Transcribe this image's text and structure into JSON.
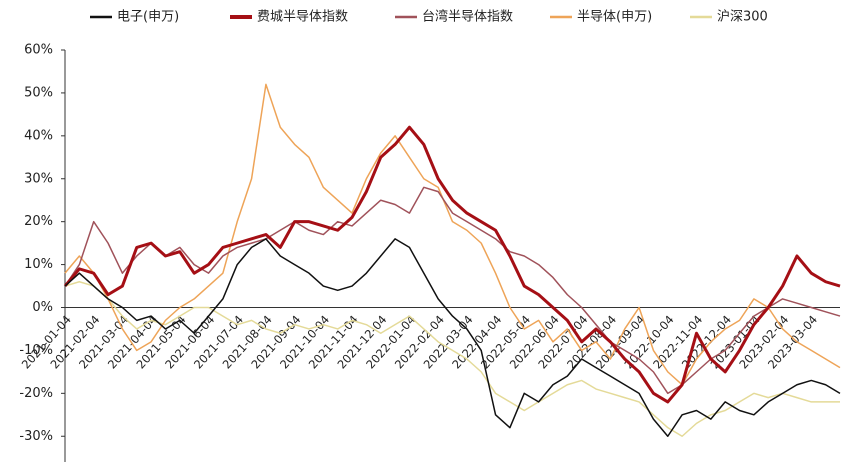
{
  "chart_data": {
    "type": "line",
    "x": [
      "2021-01-04",
      null,
      "2021-02-04",
      null,
      "2021-03-04",
      null,
      "2021-04-04",
      null,
      "2021-05-04",
      null,
      "2021-06-04",
      null,
      "2021-07-04",
      null,
      "2021-08-04",
      null,
      "2021-09-04",
      null,
      "2021-10-04",
      null,
      "2021-11-04",
      null,
      "2021-12-04",
      null,
      "2022-01-04",
      null,
      "2022-02-04",
      null,
      "2022-03-04",
      null,
      "2022-04-04",
      null,
      "2022-05-04",
      null,
      "2022-06-04",
      null,
      "2022-07-04",
      null,
      "2022-08-04",
      null,
      "2022-09-04",
      null,
      "2022-10-04",
      null,
      "2022-11-04",
      null,
      "2022-12-04",
      null,
      "2023-01-04",
      null,
      "2023-02-04",
      null,
      "2023-03-04",
      null,
      null
    ],
    "series": [
      {
        "name": "电子(申万)",
        "color": "#111111",
        "width": 1.5,
        "values": [
          5,
          8,
          5,
          2,
          0,
          -3,
          -2,
          -5,
          -3,
          -6,
          -2,
          2,
          10,
          14,
          16,
          12,
          10,
          8,
          5,
          4,
          5,
          8,
          12,
          16,
          14,
          8,
          2,
          -2,
          -5,
          -10,
          -25,
          -28,
          -20,
          -22,
          -18,
          -16,
          -12,
          -14,
          -16,
          -18,
          -20,
          -26,
          -30,
          -25,
          -24,
          -26,
          -22,
          -24,
          -25,
          -22,
          -20,
          -18,
          -17,
          -18,
          -20
        ]
      },
      {
        "name": "费城半导体指数",
        "color": "#a50f15",
        "width": 3,
        "values": [
          5,
          9,
          8,
          3,
          5,
          14,
          15,
          12,
          13,
          8,
          10,
          14,
          15,
          16,
          17,
          14,
          20,
          20,
          19,
          18,
          21,
          27,
          35,
          38,
          42,
          38,
          30,
          25,
          22,
          20,
          18,
          12,
          5,
          3,
          0,
          -3,
          -8,
          -5,
          -8,
          -12,
          -15,
          -20,
          -22,
          -18,
          -6,
          -12,
          -15,
          -10,
          -4,
          0,
          5,
          12,
          8,
          6,
          5
        ]
      },
      {
        "name": "台湾半导体指数",
        "color": "#a0525a",
        "width": 1.5,
        "values": [
          5,
          10,
          20,
          15,
          8,
          12,
          15,
          12,
          14,
          10,
          8,
          12,
          14,
          15,
          16,
          18,
          20,
          18,
          17,
          20,
          19,
          22,
          25,
          24,
          22,
          28,
          27,
          22,
          20,
          18,
          16,
          13,
          12,
          10,
          7,
          3,
          0,
          -4,
          -8,
          -10,
          -12,
          -15,
          -20,
          -18,
          -15,
          -12,
          -10,
          -6,
          -2,
          0,
          2,
          1,
          0,
          -1,
          -2
        ]
      },
      {
        "name": "半导体(申万)",
        "color": "#eea458",
        "width": 1.5,
        "values": [
          8,
          12,
          8,
          2,
          -5,
          -10,
          -8,
          -3,
          0,
          2,
          5,
          8,
          20,
          30,
          52,
          42,
          38,
          35,
          28,
          25,
          22,
          30,
          36,
          40,
          35,
          30,
          28,
          20,
          18,
          15,
          8,
          0,
          -5,
          -3,
          -8,
          -5,
          -10,
          -8,
          -12,
          -5,
          0,
          -10,
          -15,
          -18,
          -12,
          -8,
          -5,
          -3,
          2,
          0,
          -5,
          -8,
          -10,
          -12,
          -14
        ]
      },
      {
        "name": "沪深300",
        "color": "#e4da98",
        "width": 1.5,
        "values": [
          5,
          6,
          5,
          2,
          -2,
          -5,
          -3,
          -4,
          -2,
          0,
          0,
          -2,
          -4,
          -3,
          -5,
          -6,
          -4,
          -5,
          -4,
          -5,
          -3,
          -4,
          -6,
          -4,
          -2,
          -5,
          -8,
          -10,
          -12,
          -15,
          -20,
          -22,
          -24,
          -22,
          -20,
          -18,
          -17,
          -19,
          -20,
          -21,
          -22,
          -25,
          -28,
          -30,
          -27,
          -25,
          -24,
          -22,
          -20,
          -21,
          -20,
          -21,
          -22,
          -22,
          -22
        ]
      }
    ],
    "ylim": [
      -36,
      60
    ],
    "yticks": [
      {
        "value": -30,
        "label": "-30%"
      },
      {
        "value": -20,
        "label": "-20%"
      },
      {
        "value": -10,
        "label": "-10%"
      },
      {
        "value": 0,
        "label": "0%"
      },
      {
        "value": 10,
        "label": "10%"
      },
      {
        "value": 20,
        "label": "20%"
      },
      {
        "value": 30,
        "label": "30%"
      },
      {
        "value": 40,
        "label": "40%"
      },
      {
        "value": 50,
        "label": "50%"
      },
      {
        "value": 60,
        "label": "60%"
      }
    ],
    "legend": "top"
  }
}
